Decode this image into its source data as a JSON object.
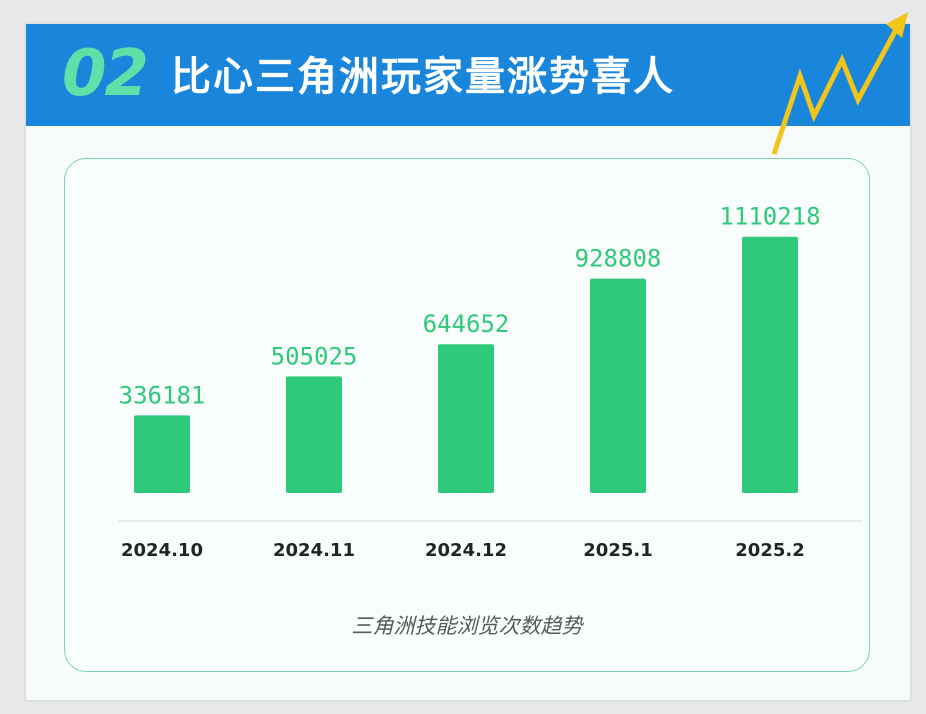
{
  "header": {
    "number": "02",
    "title": "比心三角洲玩家量涨势喜人"
  },
  "icons": {
    "trend": "trend-up-arrow-icon"
  },
  "colors": {
    "header_bg": "#1a86db",
    "bar": "#2fc97b",
    "value_label": "#2fc97b",
    "panel_border": "#7dd3b0",
    "accent_number": "#5fe0a8",
    "arrow": "#f2c51b"
  },
  "chart_data": {
    "type": "bar",
    "title": "三角洲技能浏览次数趋势",
    "categories": [
      "2024.10",
      "2024.11",
      "2024.12",
      "2025.1",
      "2025.2"
    ],
    "values": [
      336181,
      505025,
      644652,
      928808,
      1110218
    ],
    "value_labels": [
      "336181",
      "505025",
      "644652",
      "928808",
      "1110218"
    ],
    "xlabel": "",
    "ylabel": "",
    "ylim": [
      0,
      1200000
    ],
    "grid": false,
    "legend": "none"
  }
}
